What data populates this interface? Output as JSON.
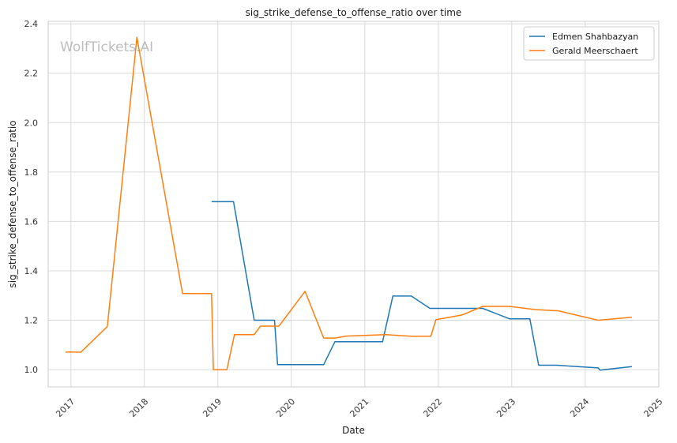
{
  "chart_data": {
    "type": "line",
    "title": "sig_strike_defense_to_offense_ratio over time",
    "xlabel": "Date",
    "ylabel": "sig_strike_defense_to_offense_ratio",
    "watermark": "WolfTickets.AI",
    "x_ticks": [
      "2017",
      "2018",
      "2019",
      "2020",
      "2021",
      "2022",
      "2023",
      "2024",
      "2025"
    ],
    "y_ticks": [
      "1.0",
      "1.2",
      "1.4",
      "1.6",
      "1.8",
      "2.0",
      "2.2",
      "2.4"
    ],
    "xlim": [
      "2016-09-10",
      "2025-01-01"
    ],
    "ylim": [
      0.93,
      2.41
    ],
    "grid": true,
    "legend_position": "top-right",
    "series": [
      {
        "name": "Edmen Shahbazyan",
        "color": "#1f77b4",
        "points": [
          [
            "2018-12-01",
            1.68
          ],
          [
            "2019-03-20",
            1.68
          ],
          [
            "2019-07-01",
            1.2
          ],
          [
            "2019-10-10",
            1.2
          ],
          [
            "2019-10-25",
            1.02
          ],
          [
            "2020-06-10",
            1.02
          ],
          [
            "2020-08-05",
            1.113
          ],
          [
            "2021-03-30",
            1.113
          ],
          [
            "2021-05-20",
            1.298
          ],
          [
            "2021-08-20",
            1.298
          ],
          [
            "2021-11-20",
            1.248
          ],
          [
            "2022-08-10",
            1.248
          ],
          [
            "2022-12-20",
            1.206
          ],
          [
            "2023-04-01",
            1.206
          ],
          [
            "2023-05-15",
            1.018
          ],
          [
            "2023-08-10",
            1.018
          ],
          [
            "2024-03-05",
            1.007
          ],
          [
            "2024-03-15",
            0.998
          ],
          [
            "2024-08-20",
            1.012
          ]
        ]
      },
      {
        "name": "Gerald Meerschaert",
        "color": "#ff7f0e",
        "points": [
          [
            "2016-12-05",
            1.071
          ],
          [
            "2017-02-20",
            1.071
          ],
          [
            "2017-07-01",
            1.175
          ],
          [
            "2017-11-25",
            2.345
          ],
          [
            "2018-07-10",
            1.308
          ],
          [
            "2018-12-01",
            1.308
          ],
          [
            "2018-12-10",
            1.0
          ],
          [
            "2019-02-15",
            1.0
          ],
          [
            "2019-03-25",
            1.142
          ],
          [
            "2019-07-01",
            1.142
          ],
          [
            "2019-08-01",
            1.176
          ],
          [
            "2019-11-01",
            1.176
          ],
          [
            "2020-03-10",
            1.317
          ],
          [
            "2020-06-10",
            1.128
          ],
          [
            "2020-08-05",
            1.128
          ],
          [
            "2020-10-01",
            1.136
          ],
          [
            "2021-04-15",
            1.142
          ],
          [
            "2021-08-20",
            1.135
          ],
          [
            "2021-11-25",
            1.135
          ],
          [
            "2021-12-20",
            1.202
          ],
          [
            "2022-05-01",
            1.222
          ],
          [
            "2022-08-10",
            1.256
          ],
          [
            "2022-12-20",
            1.256
          ],
          [
            "2023-05-01",
            1.243
          ],
          [
            "2023-08-20",
            1.238
          ],
          [
            "2024-03-05",
            1.2
          ],
          [
            "2024-08-20",
            1.212
          ]
        ]
      }
    ]
  }
}
